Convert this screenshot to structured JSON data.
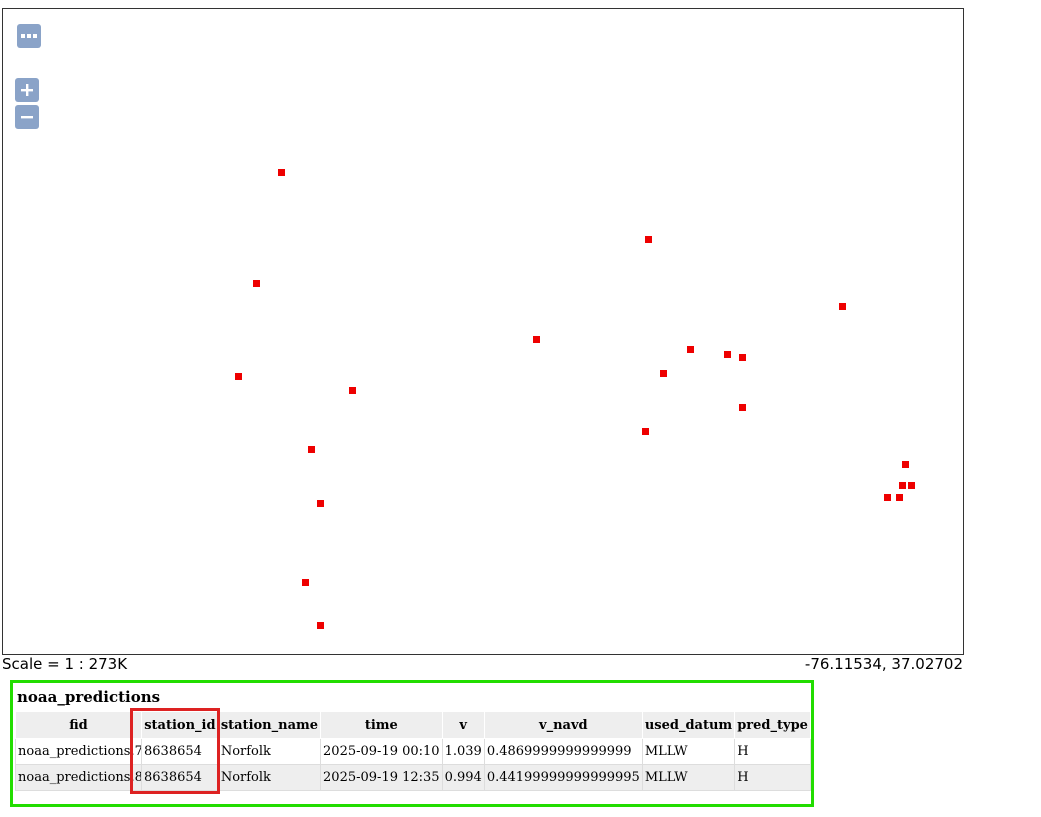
{
  "map": {
    "controls": {
      "menu_icon": "ellipsis-icon",
      "zoom_in": "+",
      "zoom_out": "−"
    },
    "feature_color": "#ee0000"
  },
  "footer": {
    "scale": "Scale = 1 : 273K",
    "coordinates": "-76.11534, 37.02702"
  },
  "results": {
    "layer_name": "noaa_predictions",
    "border_color": "#22dd00",
    "highlight_color": "#dd2222",
    "columns": [
      "fid",
      "station_id",
      "station_name",
      "time",
      "v",
      "v_navd",
      "used_datum",
      "pred_type"
    ],
    "rows": [
      [
        "noaa_predictions.7",
        "8638654",
        "Norfolk",
        "2025-09-19 00:10",
        "1.039",
        "0.4869999999999999",
        "MLLW",
        "H"
      ],
      [
        "noaa_predictions.8",
        "8638654",
        "Norfolk",
        "2025-09-19 12:35",
        "0.994",
        "0.44199999999999995",
        "MLLW",
        "H"
      ]
    ]
  }
}
